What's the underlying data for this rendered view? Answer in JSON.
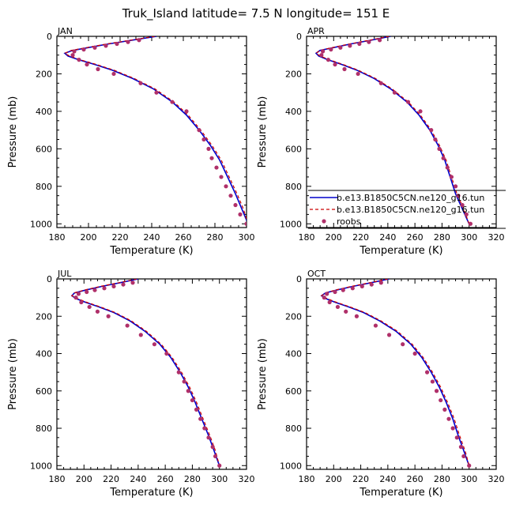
{
  "figure": {
    "title": "Truk_Island   latitude= 7.5 N longitude= 151 E"
  },
  "legend": {
    "items": [
      {
        "label": "b.e13.B1850C5CN.ne120_g16.tun",
        "style": "solid",
        "color": "#0000cc"
      },
      {
        "label": "b.e13.B1850C5CN.ne120_g16.tun",
        "style": "dashed",
        "color": "#cc0000"
      },
      {
        "label": "roobs",
        "style": "marker",
        "color": "#b0306a"
      }
    ]
  },
  "colors": {
    "model_solid": "#0000cc",
    "model_dashed": "#cc0000",
    "observations": "#b0306a"
  },
  "chart_data": [
    {
      "type": "line",
      "panel_label": "JAN",
      "xlabel": "Temperature (K)",
      "ylabel": "Pressure (mb)",
      "xlim": [
        180,
        300
      ],
      "ylim": [
        0,
        1020
      ],
      "y_inverted": true,
      "xticks": [
        "180",
        "200",
        "220",
        "240",
        "260",
        "280",
        "300"
      ],
      "yticks": [
        "0",
        "200",
        "400",
        "600",
        "800",
        "1000"
      ],
      "series": [
        {
          "name": "b.e13.B1850C5CN.ne120_g16.tun",
          "style": "solid",
          "x": [
            243,
            228,
            213,
            200,
            190,
            185,
            187,
            194,
            204,
            215,
            228,
            241,
            253,
            262,
            270,
            277,
            283,
            288,
            293,
            297,
            301
          ],
          "y": [
            0,
            20,
            40,
            60,
            75,
            90,
            105,
            125,
            150,
            180,
            225,
            280,
            350,
            420,
            500,
            580,
            660,
            750,
            840,
            920,
            1000
          ]
        },
        {
          "name": "b.e13.B1850C5CN.ne120_g16.tun",
          "style": "dashed",
          "x": [
            242,
            227,
            212,
            199,
            189,
            185,
            188,
            195,
            205,
            216,
            229,
            242,
            254,
            263,
            271,
            278,
            284,
            289,
            294,
            298,
            301
          ],
          "y": [
            0,
            20,
            40,
            60,
            75,
            90,
            105,
            125,
            150,
            180,
            225,
            280,
            350,
            420,
            500,
            580,
            660,
            750,
            840,
            920,
            1000
          ]
        },
        {
          "name": "roobs",
          "style": "marker",
          "x": [
            232,
            225,
            218,
            211,
            204,
            197,
            191,
            190,
            194,
            199,
            206,
            216,
            233,
            243,
            253,
            262,
            270,
            273,
            276,
            278,
            281,
            284,
            287,
            290,
            293,
            296,
            300
          ],
          "y": [
            20,
            30,
            40,
            50,
            60,
            70,
            80,
            100,
            125,
            150,
            175,
            200,
            250,
            300,
            350,
            400,
            500,
            550,
            600,
            650,
            700,
            750,
            800,
            850,
            900,
            950,
            1000
          ]
        }
      ]
    },
    {
      "type": "line",
      "panel_label": "APR",
      "xlabel": "Temperature (K)",
      "ylabel": "Pressure (mb)",
      "xlim": [
        180,
        320
      ],
      "ylim": [
        0,
        1020
      ],
      "y_inverted": true,
      "xticks": [
        "180",
        "200",
        "220",
        "240",
        "260",
        "280",
        "300",
        "320"
      ],
      "yticks": [
        "0",
        "200",
        "400",
        "600",
        "800",
        "1000"
      ],
      "series": [
        {
          "name": "b.e13.B1850C5CN.ne120_g16.tun",
          "style": "solid",
          "x": [
            242,
            228,
            213,
            200,
            190,
            187,
            189,
            196,
            206,
            217,
            230,
            242,
            254,
            263,
            271,
            277,
            282,
            286,
            290,
            295,
            300
          ],
          "y": [
            0,
            20,
            40,
            60,
            75,
            90,
            105,
            125,
            150,
            180,
            225,
            280,
            350,
            420,
            500,
            580,
            660,
            750,
            840,
            920,
            1000
          ]
        },
        {
          "name": "b.e13.B1850C5CN.ne120_g16.tun",
          "style": "dashed",
          "x": [
            241,
            227,
            212,
            199,
            190,
            187,
            190,
            197,
            207,
            218,
            231,
            243,
            255,
            264,
            272,
            278,
            283,
            287,
            291,
            296,
            300
          ],
          "y": [
            0,
            20,
            40,
            60,
            75,
            90,
            105,
            125,
            150,
            180,
            225,
            280,
            350,
            420,
            500,
            580,
            660,
            750,
            840,
            920,
            1000
          ]
        },
        {
          "name": "roobs",
          "style": "marker",
          "x": [
            234,
            226,
            219,
            212,
            205,
            198,
            192,
            191,
            196,
            201,
            208,
            218,
            235,
            245,
            255,
            264,
            272,
            275,
            278,
            281,
            284,
            287,
            290,
            292,
            295,
            298,
            301
          ],
          "y": [
            20,
            30,
            40,
            50,
            60,
            70,
            80,
            100,
            125,
            150,
            175,
            200,
            250,
            300,
            350,
            400,
            500,
            550,
            600,
            650,
            700,
            750,
            800,
            850,
            900,
            950,
            1000
          ]
        }
      ]
    },
    {
      "type": "line",
      "panel_label": "JUL",
      "xlabel": "Temperature (K)",
      "ylabel": "Pressure (mb)",
      "xlim": [
        180,
        320
      ],
      "ylim": [
        0,
        1020
      ],
      "y_inverted": true,
      "xticks": [
        "180",
        "200",
        "220",
        "240",
        "260",
        "280",
        "300",
        "320"
      ],
      "yticks": [
        "0",
        "200",
        "400",
        "600",
        "800",
        "1000"
      ],
      "series": [
        {
          "name": "b.e13.B1850C5CN.ne120_g16.tun",
          "style": "solid",
          "x": [
            240,
            227,
            213,
            201,
            193,
            191,
            194,
            201,
            211,
            222,
            234,
            245,
            256,
            264,
            271,
            277,
            282,
            287,
            292,
            296,
            300
          ],
          "y": [
            0,
            20,
            40,
            60,
            75,
            90,
            105,
            125,
            150,
            180,
            225,
            280,
            350,
            420,
            500,
            580,
            660,
            750,
            840,
            920,
            1000
          ]
        },
        {
          "name": "b.e13.B1850C5CN.ne120_g16.tun",
          "style": "dashed",
          "x": [
            239,
            226,
            212,
            200,
            193,
            191,
            195,
            202,
            212,
            223,
            235,
            246,
            257,
            265,
            272,
            278,
            283,
            288,
            293,
            297,
            300
          ],
          "y": [
            0,
            20,
            40,
            60,
            75,
            90,
            105,
            125,
            150,
            180,
            225,
            280,
            350,
            420,
            500,
            580,
            660,
            750,
            840,
            920,
            1000
          ]
        },
        {
          "name": "roobs",
          "style": "marker",
          "x": [
            236,
            229,
            222,
            215,
            208,
            202,
            196,
            194,
            198,
            204,
            210,
            218,
            232,
            242,
            252,
            261,
            270,
            274,
            277,
            280,
            283,
            286,
            289,
            292,
            295,
            297,
            300
          ],
          "y": [
            20,
            30,
            40,
            50,
            60,
            70,
            80,
            100,
            125,
            150,
            175,
            200,
            250,
            300,
            350,
            400,
            500,
            550,
            600,
            650,
            700,
            750,
            800,
            850,
            900,
            950,
            1000
          ]
        }
      ]
    },
    {
      "type": "line",
      "panel_label": "OCT",
      "xlabel": "Temperature (K)",
      "ylabel": "Pressure (mb)",
      "xlim": [
        180,
        320
      ],
      "ylim": [
        0,
        1020
      ],
      "y_inverted": true,
      "xticks": [
        "180",
        "200",
        "220",
        "240",
        "260",
        "280",
        "300",
        "320"
      ],
      "yticks": [
        "0",
        "200",
        "400",
        "600",
        "800",
        "1000"
      ],
      "series": [
        {
          "name": "b.e13.B1850C5CN.ne120_g16.tun",
          "style": "solid",
          "x": [
            241,
            228,
            214,
            202,
            194,
            191,
            194,
            201,
            211,
            222,
            234,
            246,
            257,
            265,
            272,
            278,
            283,
            288,
            292,
            296,
            300
          ],
          "y": [
            0,
            20,
            40,
            60,
            75,
            90,
            105,
            125,
            150,
            180,
            225,
            280,
            350,
            420,
            500,
            580,
            660,
            750,
            840,
            920,
            1000
          ]
        },
        {
          "name": "b.e13.B1850C5CN.ne120_g16.tun",
          "style": "dashed",
          "x": [
            240,
            227,
            213,
            201,
            194,
            191,
            195,
            202,
            212,
            223,
            235,
            247,
            258,
            266,
            273,
            279,
            284,
            289,
            293,
            297,
            300
          ],
          "y": [
            0,
            20,
            40,
            60,
            75,
            90,
            105,
            125,
            150,
            180,
            225,
            280,
            350,
            420,
            500,
            580,
            660,
            750,
            840,
            920,
            1000
          ]
        },
        {
          "name": "roobs",
          "style": "marker",
          "x": [
            235,
            228,
            221,
            214,
            207,
            201,
            195,
            193,
            197,
            203,
            209,
            217,
            231,
            241,
            251,
            260,
            269,
            273,
            276,
            279,
            282,
            285,
            288,
            291,
            294,
            296,
            300
          ],
          "y": [
            20,
            30,
            40,
            50,
            60,
            70,
            80,
            100,
            125,
            150,
            175,
            200,
            250,
            300,
            350,
            400,
            500,
            550,
            600,
            650,
            700,
            750,
            800,
            850,
            900,
            950,
            1000
          ]
        }
      ]
    }
  ]
}
